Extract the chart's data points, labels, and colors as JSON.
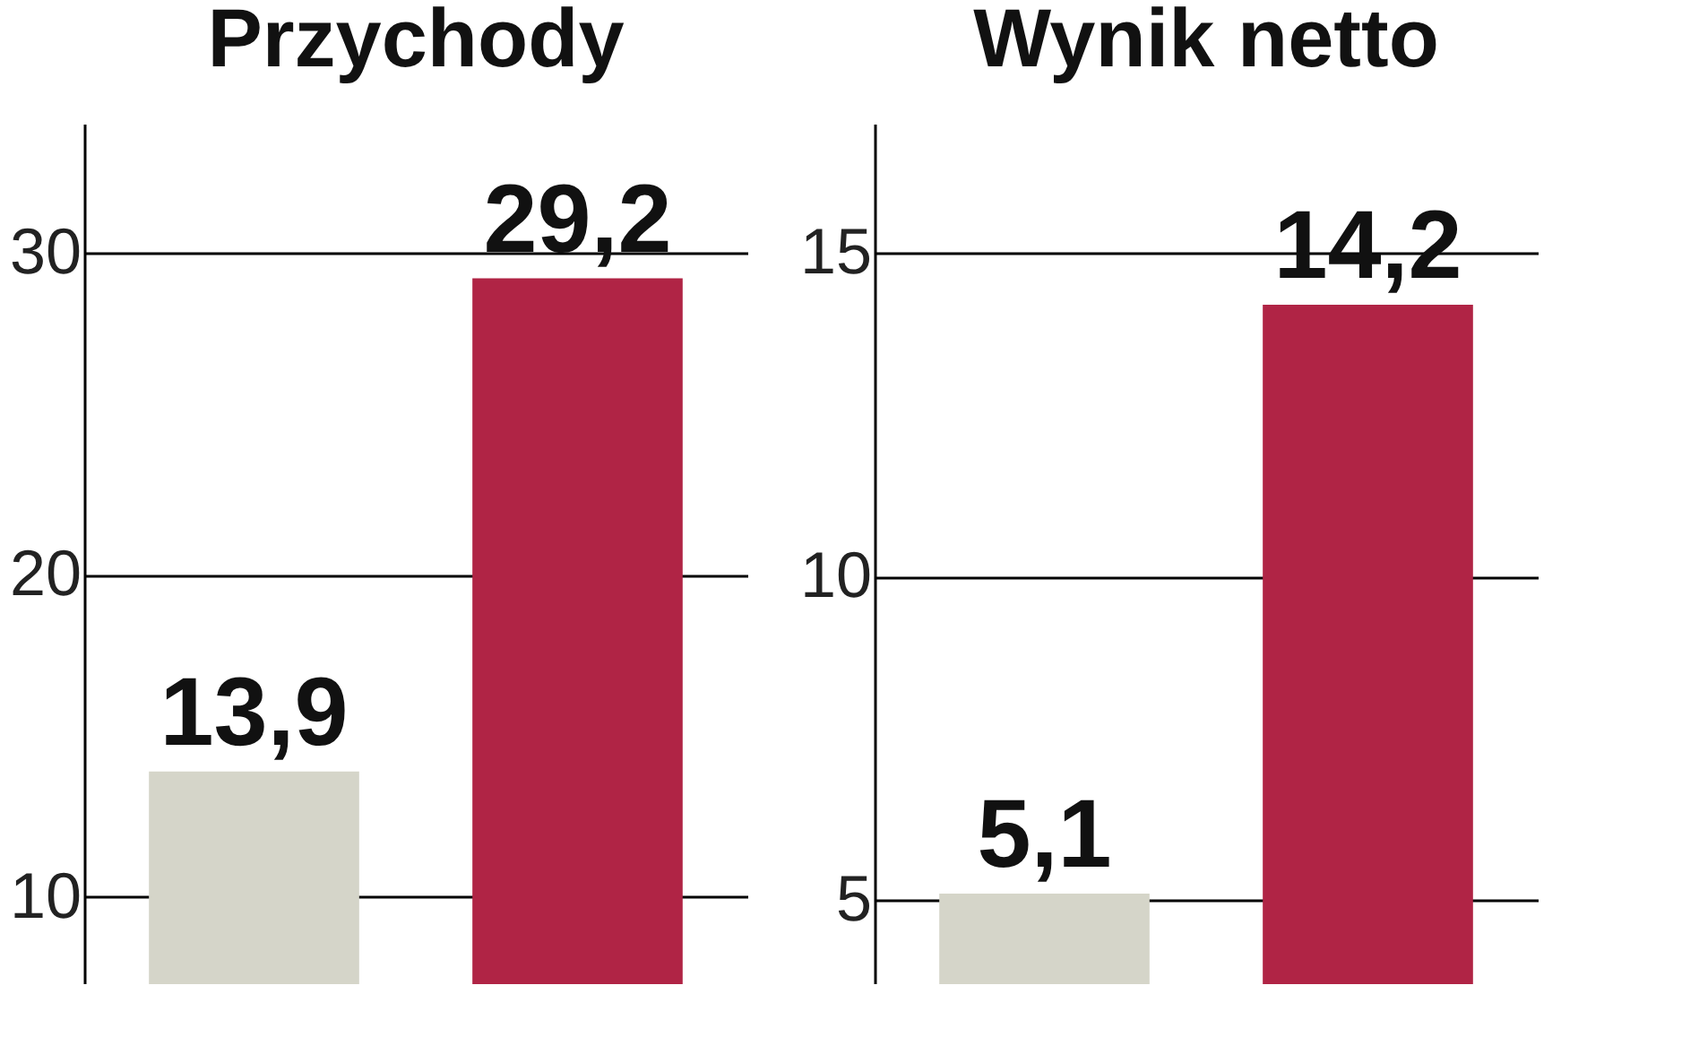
{
  "chart_data": [
    {
      "type": "bar",
      "title": "Przychody",
      "categories": [
        null,
        null
      ],
      "values": [
        13.9,
        29.2
      ],
      "value_labels": [
        "13,9",
        "29,2"
      ],
      "colors": [
        "#d5d5c9",
        "#b02445"
      ],
      "ylim": [
        7.3,
        34
      ],
      "yticks": [
        10,
        20,
        30
      ],
      "grid": "y",
      "tick_labels": "y"
    },
    {
      "type": "bar",
      "title": "Wynik netto",
      "categories": [
        null,
        null
      ],
      "values": [
        5.1,
        14.2
      ],
      "value_labels": [
        "5,1",
        "14,2"
      ],
      "colors": [
        "#d5d5c9",
        "#b02445"
      ],
      "ylim": [
        3.7,
        17
      ],
      "yticks": [
        5,
        10,
        15
      ],
      "grid": "y",
      "tick_labels": "y"
    }
  ]
}
